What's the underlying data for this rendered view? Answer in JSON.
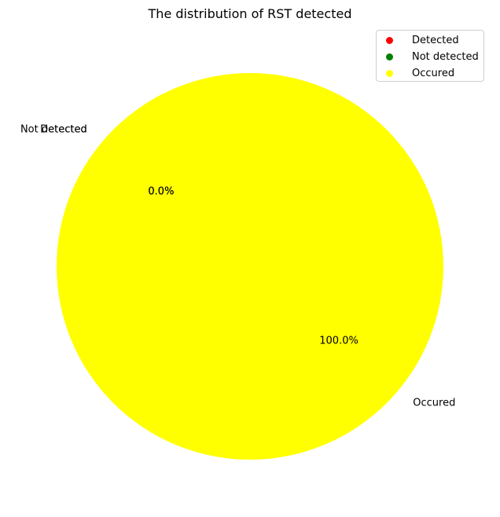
{
  "chart_data": {
    "type": "pie",
    "title": "The distribution of RST detected",
    "slices": [
      {
        "label": "Detected",
        "value": 0,
        "percent_label": "0.0%",
        "color": "#ff0000"
      },
      {
        "label": "Not detected",
        "value": 0,
        "percent_label": "0.0%",
        "color": "#008000"
      },
      {
        "label": "Occured",
        "value": 100,
        "percent_label": "100.0%",
        "color": "#ffff00"
      }
    ],
    "legend": {
      "position": "top-right",
      "entries": [
        {
          "label": "Detected",
          "color": "#ff0000"
        },
        {
          "label": "Not detected",
          "color": "#008000"
        },
        {
          "label": "Occured",
          "color": "#ffff00"
        }
      ]
    }
  }
}
